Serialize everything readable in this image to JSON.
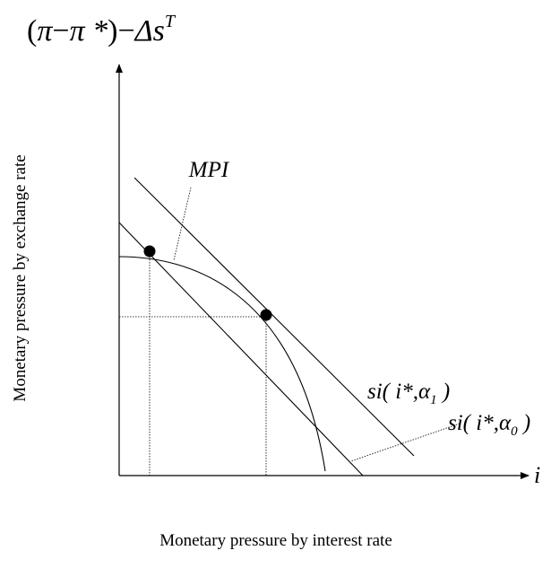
{
  "y_axis_top_label": {
    "open_paren": "(",
    "pi": "π",
    "minus": "−",
    "pi_star": "π *",
    "close_paren": ")",
    "minus2": "−",
    "delta_s": "Δs",
    "superscript": "T"
  },
  "y_axis_description": "Monetary pressure by exchange rate",
  "x_axis_symbol": "i",
  "x_axis_description": "Monetary pressure by interest rate",
  "curve_label": "MPI",
  "line_label_upper": {
    "prefix": "si( i*,",
    "alpha": "α",
    "subscript": "1",
    "suffix": " )"
  },
  "line_label_lower": {
    "prefix": "si( i*,",
    "alpha": "α",
    "subscript": "0",
    "suffix": " )"
  }
}
